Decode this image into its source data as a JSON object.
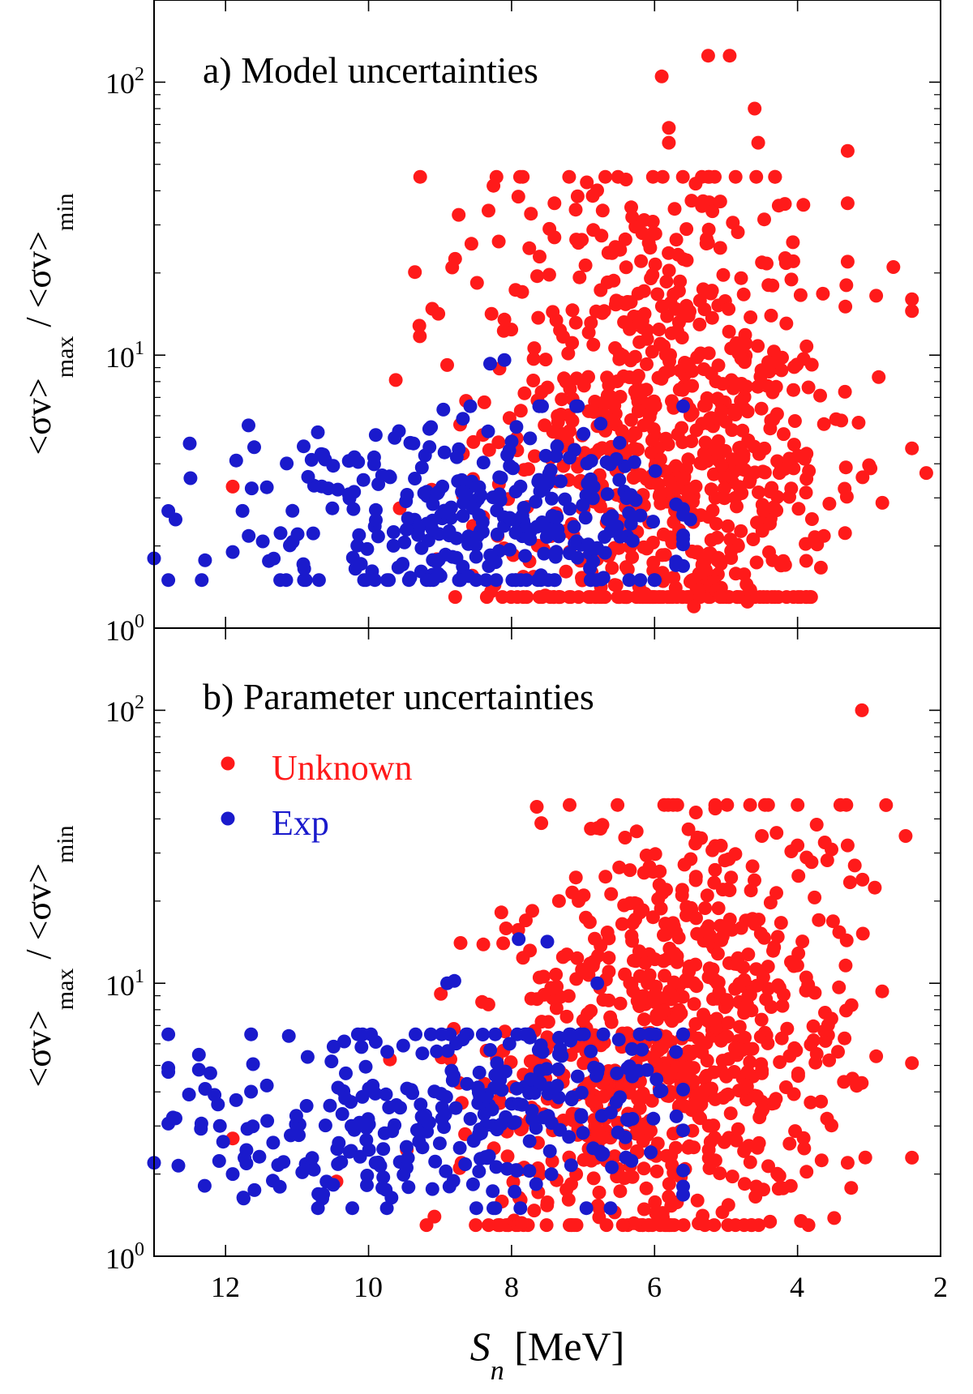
{
  "chart_data": [
    {
      "type": "scatter",
      "title": "a) Model uncertainties",
      "xlabel": "",
      "ylabel_parts": [
        "<σv>",
        "max",
        " / <σv>",
        "min"
      ],
      "xlim": [
        13,
        2
      ],
      "x_reversed": true,
      "ylim": [
        1,
        200
      ],
      "yscale": "log",
      "y_ticks": [
        {
          "base": "10",
          "exp": "0"
        },
        {
          "base": "10",
          "exp": "1"
        },
        {
          "base": "10",
          "exp": "2"
        }
      ],
      "x_ticks": [],
      "grid": false,
      "colors": {
        "Unknown": "#ff1a1a",
        "Exp": "#1a1acc"
      },
      "clusters": [
        {
          "series": "Unknown",
          "cx": 5.6,
          "cy": 4.0,
          "sx": 1.1,
          "sy": 0.42,
          "n": 520,
          "seed": 11
        },
        {
          "series": "Unknown",
          "cx": 6.8,
          "cy": 6.0,
          "sx": 1.2,
          "sy": 0.5,
          "n": 180,
          "seed": 12
        },
        {
          "series": "Unknown",
          "cx": 5.2,
          "cy": 12.0,
          "sx": 1.3,
          "sy": 0.4,
          "n": 120,
          "seed": 13
        },
        {
          "series": "Exp",
          "cx": 9.0,
          "cy": 2.6,
          "sx": 1.6,
          "sy": 0.2,
          "n": 230,
          "seed": 14
        },
        {
          "series": "Exp",
          "cx": 7.4,
          "cy": 2.3,
          "sx": 1.0,
          "sy": 0.22,
          "n": 90,
          "seed": 15
        }
      ],
      "points": [
        {
          "series": "Unknown",
          "x": 5.9,
          "y": 105
        },
        {
          "series": "Unknown",
          "x": 5.25,
          "y": 125
        },
        {
          "series": "Unknown",
          "x": 4.95,
          "y": 125
        },
        {
          "series": "Unknown",
          "x": 4.6,
          "y": 80
        },
        {
          "series": "Unknown",
          "x": 4.55,
          "y": 60
        },
        {
          "series": "Unknown",
          "x": 3.3,
          "y": 56
        },
        {
          "series": "Unknown",
          "x": 5.8,
          "y": 68
        },
        {
          "series": "Unknown",
          "x": 5.8,
          "y": 60
        },
        {
          "series": "Unknown",
          "x": 6.4,
          "y": 44
        },
        {
          "series": "Unknown",
          "x": 7.4,
          "y": 36
        },
        {
          "series": "Unknown",
          "x": 7.4,
          "y": 27
        },
        {
          "series": "Unknown",
          "x": 3.3,
          "y": 36
        },
        {
          "series": "Unknown",
          "x": 3.3,
          "y": 22
        },
        {
          "series": "Unknown",
          "x": 2.4,
          "y": 14.5
        },
        {
          "series": "Unknown",
          "x": 2.2,
          "y": 3.7
        },
        {
          "series": "Unknown",
          "x": 2.9,
          "y": 16.5
        },
        {
          "series": "Unknown",
          "x": 5.45,
          "y": 1.2
        },
        {
          "series": "Unknown",
          "x": 4.7,
          "y": 1.25
        },
        {
          "series": "Unknown",
          "x": 6.4,
          "y": 1.3
        },
        {
          "series": "Unknown",
          "x": 11.9,
          "y": 3.3
        },
        {
          "series": "Unknown",
          "x": 8.9,
          "y": 9.2
        },
        {
          "series": "Unknown",
          "x": 8.1,
          "y": 13.5
        },
        {
          "series": "Exp",
          "x": 13.0,
          "y": 1.8
        },
        {
          "series": "Exp",
          "x": 12.7,
          "y": 2.5
        },
        {
          "series": "Exp",
          "x": 11.6,
          "y": 4.6
        },
        {
          "series": "Exp",
          "x": 9.9,
          "y": 5.1
        },
        {
          "series": "Exp",
          "x": 8.3,
          "y": 9.3
        },
        {
          "series": "Exp",
          "x": 8.1,
          "y": 9.6
        },
        {
          "series": "Exp",
          "x": 8.6,
          "y": 1.55
        },
        {
          "series": "Exp",
          "x": 5.7,
          "y": 1.7
        },
        {
          "series": "Exp",
          "x": 5.5,
          "y": 2.5
        },
        {
          "series": "Exp",
          "x": 10.9,
          "y": 1.65
        },
        {
          "series": "Exp",
          "x": 11.9,
          "y": 1.9
        }
      ]
    },
    {
      "type": "scatter",
      "title": "b) Parameter uncertainties",
      "xlabel_parts": [
        "S",
        "n",
        " [MeV]"
      ],
      "ylabel_parts": [
        "<σv>",
        "max",
        " / <σv>",
        "min"
      ],
      "xlim": [
        13,
        2
      ],
      "x_reversed": true,
      "ylim": [
        1,
        200
      ],
      "yscale": "log",
      "y_ticks": [
        {
          "base": "10",
          "exp": "0"
        },
        {
          "base": "10",
          "exp": "1"
        },
        {
          "base": "10",
          "exp": "2"
        }
      ],
      "x_ticks": [
        "12",
        "10",
        "8",
        "6",
        "4",
        "2"
      ],
      "x_tick_values": [
        12,
        10,
        8,
        6,
        4,
        2
      ],
      "grid": false,
      "legend": {
        "placement": "upper-left",
        "entries": [
          {
            "label": "Unknown",
            "color": "#ff1a1a"
          },
          {
            "label": "Exp",
            "color": "#1a1acc"
          }
        ]
      },
      "colors": {
        "Unknown": "#ff1a1a",
        "Exp": "#1a1acc"
      },
      "clusters": [
        {
          "series": "Unknown",
          "cx": 5.6,
          "cy": 5.5,
          "sx": 1.1,
          "sy": 0.38,
          "n": 520,
          "seed": 21
        },
        {
          "series": "Unknown",
          "cx": 7.0,
          "cy": 4.0,
          "sx": 1.1,
          "sy": 0.35,
          "n": 180,
          "seed": 22
        },
        {
          "series": "Unknown",
          "cx": 5.0,
          "cy": 14.0,
          "sx": 1.2,
          "sy": 0.35,
          "n": 120,
          "seed": 23
        },
        {
          "series": "Exp",
          "cx": 9.3,
          "cy": 3.0,
          "sx": 1.6,
          "sy": 0.17,
          "n": 230,
          "seed": 24
        },
        {
          "series": "Exp",
          "cx": 7.2,
          "cy": 4.3,
          "sx": 0.9,
          "sy": 0.22,
          "n": 90,
          "seed": 25
        }
      ],
      "points": [
        {
          "series": "Unknown",
          "x": 3.1,
          "y": 100
        },
        {
          "series": "Unknown",
          "x": 6.8,
          "y": 37
        },
        {
          "series": "Unknown",
          "x": 6.25,
          "y": 36
        },
        {
          "series": "Unknown",
          "x": 5.35,
          "y": 34
        },
        {
          "series": "Unknown",
          "x": 4.0,
          "y": 32
        },
        {
          "series": "Unknown",
          "x": 3.3,
          "y": 32
        },
        {
          "series": "Unknown",
          "x": 3.2,
          "y": 27
        },
        {
          "series": "Unknown",
          "x": 2.4,
          "y": 5.1
        },
        {
          "series": "Unknown",
          "x": 2.9,
          "y": 5.4
        },
        {
          "series": "Unknown",
          "x": 5.05,
          "y": 1.45
        },
        {
          "series": "Unknown",
          "x": 5.4,
          "y": 1.6
        },
        {
          "series": "Unknown",
          "x": 11.9,
          "y": 2.7
        },
        {
          "series": "Unknown",
          "x": 8.7,
          "y": 2.2
        },
        {
          "series": "Unknown",
          "x": 7.8,
          "y": 17.0
        },
        {
          "series": "Unknown",
          "x": 3.3,
          "y": 2.2
        },
        {
          "series": "Exp",
          "x": 13.0,
          "y": 2.2
        },
        {
          "series": "Exp",
          "x": 12.7,
          "y": 3.2
        },
        {
          "series": "Exp",
          "x": 11.9,
          "y": 2.0
        },
        {
          "series": "Exp",
          "x": 9.9,
          "y": 6.1
        },
        {
          "series": "Exp",
          "x": 8.9,
          "y": 10.0
        },
        {
          "series": "Exp",
          "x": 8.8,
          "y": 10.2
        },
        {
          "series": "Exp",
          "x": 7.9,
          "y": 14.5
        },
        {
          "series": "Exp",
          "x": 7.5,
          "y": 14.2
        },
        {
          "series": "Exp",
          "x": 6.8,
          "y": 10.0
        },
        {
          "series": "Exp",
          "x": 6.4,
          "y": 2.3
        },
        {
          "series": "Exp",
          "x": 5.7,
          "y": 5.6
        }
      ]
    }
  ]
}
